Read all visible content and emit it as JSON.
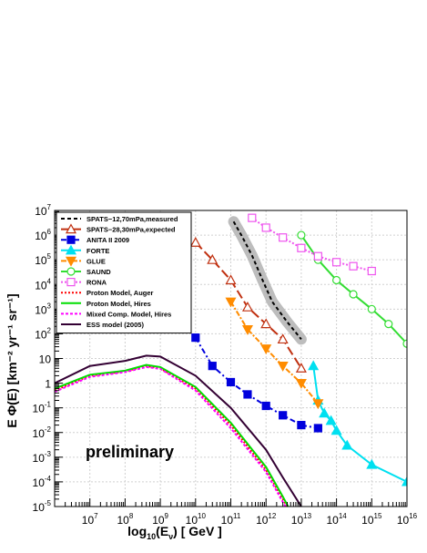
{
  "chart_data": {
    "type": "line",
    "title": "",
    "xlabel_parts": {
      "prefix": "log",
      "sub1": "10",
      "mid": "(E",
      "sub2": "ν",
      "suffix": ") [ GeV ]"
    },
    "ylabel": "E Φ(E) [km⁻² yr⁻¹ sr⁻¹]",
    "annotation": "preliminary",
    "x_scale": "log",
    "y_scale": "log",
    "xlim": [
      1000000.0,
      1e+16
    ],
    "ylim": [
      1e-05,
      10000000.0
    ],
    "x_ticks": [
      {
        "value": 10000000.0,
        "base": "10",
        "exp": "7"
      },
      {
        "value": 100000000.0,
        "base": "10",
        "exp": "8"
      },
      {
        "value": 1000000000.0,
        "base": "10",
        "exp": "9"
      },
      {
        "value": 10000000000.0,
        "base": "10",
        "exp": "10"
      },
      {
        "value": 100000000000.0,
        "base": "10",
        "exp": "11"
      },
      {
        "value": 1000000000000.0,
        "base": "10",
        "exp": "12"
      },
      {
        "value": 10000000000000.0,
        "base": "10",
        "exp": "13"
      },
      {
        "value": 100000000000000.0,
        "base": "10",
        "exp": "14"
      },
      {
        "value": 1000000000000000.0,
        "base": "10",
        "exp": "15"
      },
      {
        "value": 1e+16,
        "base": "10",
        "exp": "16"
      }
    ],
    "y_ticks": [
      {
        "value": 1e-05,
        "base": "10",
        "exp": "-5"
      },
      {
        "value": 0.0001,
        "base": "10",
        "exp": "-4"
      },
      {
        "value": 0.001,
        "base": "10",
        "exp": "-3"
      },
      {
        "value": 0.01,
        "base": "10",
        "exp": "-2"
      },
      {
        "value": 0.1,
        "base": "10",
        "exp": "-1"
      },
      {
        "value": 1,
        "base": "1",
        "exp": ""
      },
      {
        "value": 10,
        "base": "10",
        "exp": ""
      },
      {
        "value": 100,
        "base": "10",
        "exp": "2"
      },
      {
        "value": 1000.0,
        "base": "10",
        "exp": "3"
      },
      {
        "value": 10000.0,
        "base": "10",
        "exp": "4"
      },
      {
        "value": 100000.0,
        "base": "10",
        "exp": "5"
      },
      {
        "value": 1000000.0,
        "base": "10",
        "exp": "6"
      },
      {
        "value": 10000000.0,
        "base": "10",
        "exp": "7"
      }
    ],
    "grid": true,
    "legend_position": "top-left",
    "series": [
      {
        "name": "SPATS−12,70mPa,measured",
        "color": "#000000",
        "dash": "4,3",
        "marker": "none",
        "band_color": "#bdbdbd",
        "x": [
          120000000000.0,
          200000000000.0,
          400000000000.0,
          800000000000.0,
          1500000000000.0,
          4000000000000.0,
          10000000000000.0
        ],
        "y": [
          3500000.0,
          1000000.0,
          150000.0,
          15000.0,
          2000,
          300,
          60
        ]
      },
      {
        "name": "SPATS−28,30mPa,expected",
        "color": "#c03010",
        "dash": "10,4",
        "marker": "triangle-open",
        "x": [
          10000000000.0,
          30000000000.0,
          100000000000.0,
          300000000000.0,
          1000000000000.0,
          3000000000000.0,
          10000000000000.0
        ],
        "y": [
          500000.0,
          100000.0,
          15000.0,
          1200,
          250,
          60,
          4
        ]
      },
      {
        "name": "ANITA II 2009",
        "color": "#0000dd",
        "dash": "6,3,2,3",
        "marker": "square",
        "x": [
          10000000000.0,
          30000000000.0,
          100000000000.0,
          300000000000.0,
          1000000000000.0,
          3000000000000.0,
          10000000000000.0,
          30000000000000.0
        ],
        "y": [
          70,
          5,
          1.1,
          0.35,
          0.12,
          0.05,
          0.02,
          0.015
        ]
      },
      {
        "name": "FORTE",
        "color": "#00e0f0",
        "dash": "",
        "marker": "triangle",
        "x": [
          22000000000000.0,
          30000000000000.0,
          45000000000000.0,
          70000000000000.0,
          100000000000000.0,
          200000000000000.0,
          1000000000000000.0,
          1e+16
        ],
        "y": [
          5,
          0.2,
          0.06,
          0.03,
          0.012,
          0.003,
          0.0005,
          0.0001
        ]
      },
      {
        "name": "GLUE",
        "color": "#ff8c00",
        "dash": "6,2,2,2",
        "marker": "triangle-down",
        "x": [
          100000000000.0,
          300000000000.0,
          1000000000000.0,
          3000000000000.0,
          10000000000000.0,
          30000000000000.0
        ],
        "y": [
          2000,
          150,
          25,
          5,
          1,
          0.15
        ]
      },
      {
        "name": "SAUND",
        "color": "#33dd33",
        "dash": "",
        "marker": "circle-open",
        "x": [
          10000000000000.0,
          30000000000000.0,
          100000000000000.0,
          300000000000000.0,
          1000000000000000.0,
          3000000000000000.0,
          1e+16
        ],
        "y": [
          1000000.0,
          100000.0,
          15000.0,
          4000,
          1000,
          250,
          40
        ]
      },
      {
        "name": "RONA",
        "color": "#ee55ee",
        "dash": "2,2",
        "marker": "square-open",
        "x": [
          400000000000.0,
          1000000000000.0,
          3000000000000.0,
          10000000000000.0,
          30000000000000.0,
          100000000000000.0,
          300000000000000.0,
          1000000000000000.0
        ],
        "y": [
          5000000.0,
          2000000.0,
          800000.0,
          300000.0,
          140000.0,
          80000.0,
          55000.0,
          35000.0
        ]
      },
      {
        "name": "Proton Model, Auger",
        "color": "#ff0000",
        "dash": "2,2",
        "marker": "none",
        "x": [
          1000000.0,
          10000000.0,
          100000000.0,
          400000000.0,
          1000000000.0,
          10000000000.0,
          100000000000.0,
          1000000000000.0,
          3000000000000.0,
          10000000000000.0
        ],
        "y": [
          0.5,
          2,
          3,
          5,
          4,
          0.6,
          0.02,
          0.0003,
          2e-05,
          1e-06
        ]
      },
      {
        "name": "Proton Model, Hires",
        "color": "#00dd00",
        "dash": "",
        "marker": "none",
        "x": [
          1000000.0,
          10000000.0,
          100000000.0,
          400000000.0,
          1000000000.0,
          10000000000.0,
          100000000000.0,
          1000000000000.0,
          3000000000000.0,
          10000000000000.0
        ],
        "y": [
          0.6,
          2.2,
          3.2,
          5.5,
          4.5,
          0.7,
          0.025,
          0.0004,
          2.5e-05,
          1e-06
        ]
      },
      {
        "name": "Mixed Comp. Model, Hires",
        "color": "#ff00ff",
        "dash": "3,2",
        "marker": "none",
        "x": [
          1000000.0,
          10000000.0,
          100000000.0,
          400000000.0,
          1000000000.0,
          10000000000.0,
          100000000000.0,
          1000000000000.0,
          3000000000000.0,
          10000000000000.0
        ],
        "y": [
          0.45,
          1.8,
          2.8,
          4.5,
          3.8,
          0.5,
          0.015,
          0.00025,
          1.5e-05,
          1e-06
        ]
      },
      {
        "name": "ESS model (2005)",
        "color": "#330033",
        "dash": "",
        "marker": "none",
        "x": [
          1000000.0,
          10000000.0,
          100000000.0,
          400000000.0,
          1000000000.0,
          10000000000.0,
          100000000000.0,
          1000000000000.0,
          3000000000000.0,
          10000000000000.0
        ],
        "y": [
          1,
          5,
          8,
          13,
          12,
          2,
          0.1,
          0.002,
          0.00015,
          1e-05
        ]
      }
    ]
  }
}
